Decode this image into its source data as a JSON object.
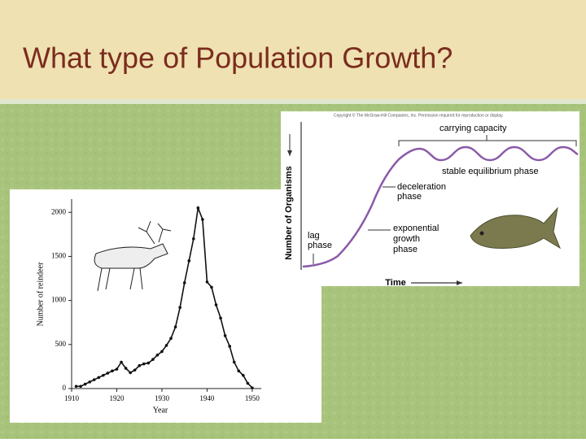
{
  "slide": {
    "title": "What type of Population Growth?"
  },
  "chart_data": {
    "type": "line",
    "x_label": "Year",
    "y_label": "Number of reindeer",
    "x": [
      1911,
      1912,
      1913,
      1914,
      1915,
      1916,
      1917,
      1918,
      1919,
      1920,
      1921,
      1922,
      1923,
      1924,
      1925,
      1926,
      1927,
      1928,
      1929,
      1930,
      1931,
      1932,
      1933,
      1934,
      1935,
      1936,
      1937,
      1938,
      1939,
      1940,
      1941,
      1942,
      1943,
      1944,
      1945,
      1946,
      1947,
      1948,
      1949,
      1950
    ],
    "series": [
      {
        "color": "#111111",
        "values": [
          25,
          25,
          50,
          75,
          100,
          125,
          150,
          175,
          200,
          220,
          300,
          230,
          180,
          210,
          260,
          280,
          290,
          330,
          380,
          420,
          490,
          570,
          700,
          920,
          1200,
          1450,
          1700,
          2050,
          1920,
          1210,
          1150,
          950,
          800,
          600,
          480,
          300,
          200,
          150,
          60,
          8
        ]
      }
    ],
    "xlim": [
      1910,
      1952
    ],
    "ylim": [
      0,
      2150
    ],
    "xticks": [
      1910,
      1920,
      1930,
      1940,
      1950
    ],
    "yticks": [
      0,
      500,
      1000,
      1500,
      2000
    ]
  },
  "diagram": {
    "copyright": "Copyright © The McGraw-Hill Companies, Inc. Permission required for reproduction or display.",
    "y_label": "Number of Organisms",
    "x_label": "Time",
    "carrying_capacity": "carrying capacity",
    "stable": "stable equilibrium phase",
    "deceleration": [
      "deceleration",
      "phase"
    ],
    "lag": [
      "lag",
      "phase"
    ],
    "exponential": [
      "exponential",
      "growth",
      "phase"
    ]
  }
}
